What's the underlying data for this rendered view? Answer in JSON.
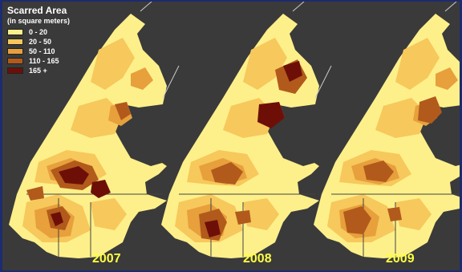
{
  "legend": {
    "title": "Scarred Area",
    "subtitle": "(in square meters)",
    "classes": [
      {
        "label": "0 - 20",
        "color": "#fdf08a"
      },
      {
        "label": "20 - 50",
        "color": "#f7c85c"
      },
      {
        "label": "50 - 110",
        "color": "#e7a03c"
      },
      {
        "label": "110 - 165",
        "color": "#b25a1c"
      },
      {
        "label": "165 +",
        "color": "#6e0f07"
      }
    ]
  },
  "panels": [
    {
      "year": "2007"
    },
    {
      "year": "2008"
    },
    {
      "year": "2009"
    }
  ],
  "colors": {
    "background": "#3a3a3a",
    "border": "#1d2c6e",
    "year_text": "#ffff44"
  }
}
